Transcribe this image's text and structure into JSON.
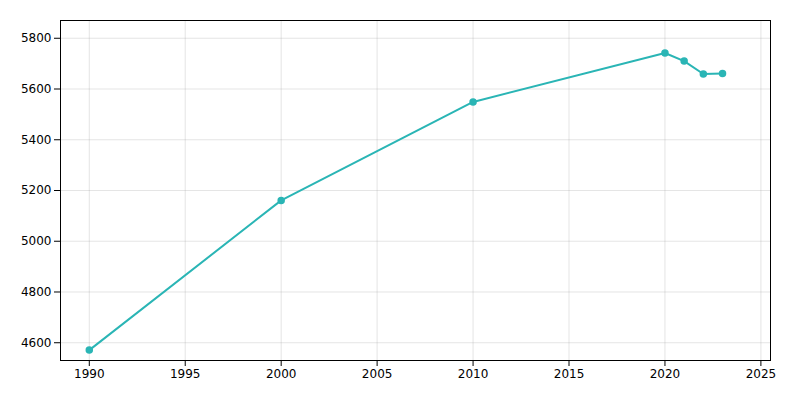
{
  "chart_data": {
    "type": "line",
    "x": [
      1990,
      2000,
      2010,
      2020,
      2021,
      2022,
      2023
    ],
    "values": [
      4571,
      5161,
      5549,
      5742,
      5710,
      5659,
      5661
    ],
    "color": "#2ab5b5",
    "marker": "circle",
    "xlim": [
      1988.5,
      2025.5
    ],
    "ylim": [
      4530,
      5870
    ],
    "xticks": [
      1990,
      1995,
      2000,
      2005,
      2010,
      2015,
      2020,
      2025
    ],
    "yticks": [
      4600,
      4800,
      5000,
      5200,
      5400,
      5600,
      5800
    ],
    "grid": true
  }
}
